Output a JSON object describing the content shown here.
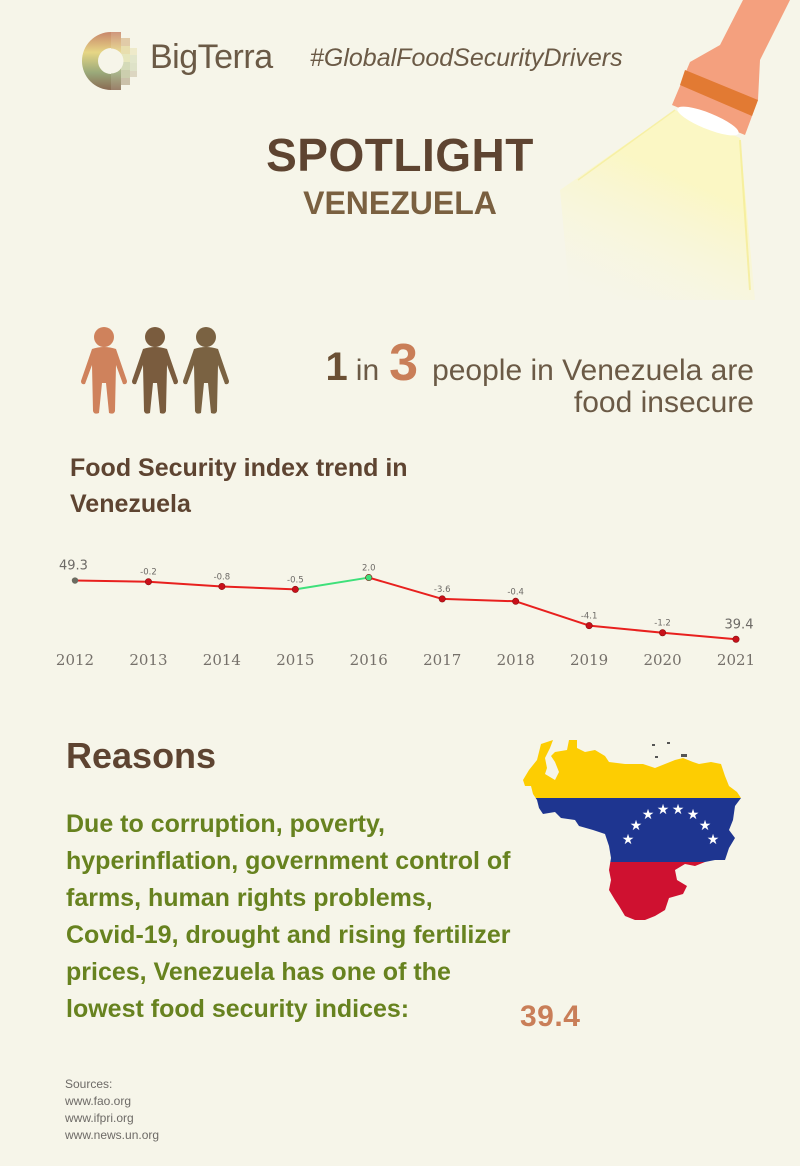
{
  "header": {
    "brand": "BigTerra",
    "hashtag": "#GlobalFoodSecurityDrivers",
    "logo_icon": "bigterra-logo-icon",
    "flashlight_icon": "flashlight-icon"
  },
  "title": "SPOTLIGHT",
  "subtitle": "VENEZUELA",
  "stat": {
    "numerator": "1",
    "connector": "in",
    "denominator": "3",
    "text_line1": "people in Venezuela are",
    "text_line2": "food insecure",
    "icon": "people-icon",
    "colors": {
      "highlight": "#c97e58",
      "base": "#6b5034"
    }
  },
  "chart_section": {
    "title": "Food Security index trend in Venezuela"
  },
  "chart_data": {
    "type": "line",
    "title": "Food Security index trend in Venezuela",
    "xlabel": "",
    "ylabel": "",
    "categories": [
      "2012",
      "2013",
      "2014",
      "2015",
      "2016",
      "2017",
      "2018",
      "2019",
      "2020",
      "2021"
    ],
    "series": [
      {
        "name": "Food Security Index",
        "values": [
          49.3,
          49.1,
          48.3,
          47.8,
          49.8,
          46.2,
          45.8,
          41.7,
          40.5,
          39.4
        ]
      }
    ],
    "point_labels": [
      "49.3",
      "-0.2",
      "-0.8",
      "-0.5",
      "2.0",
      "-3.6",
      "-0.4",
      "-4.1",
      "-1.2",
      "39.4"
    ],
    "grid": false,
    "legend": "none",
    "colors": {
      "decline": "#e8201e",
      "increase": "#3ee07a",
      "start_marker": "#6b6b60",
      "marker": "#c8101a"
    }
  },
  "reasons": {
    "title": "Reasons",
    "body": "Due to corruption, poverty, hyperinflation, government control of farms, human rights problems, Covid-19, drought and rising fertilizer prices, Venezuela has one of the lowest food security indices:",
    "value": "39.4",
    "map_icon": "venezuela-flag-map-icon"
  },
  "sources": {
    "label": "Sources:",
    "items": [
      "www.fao.org",
      "www.ifpri.org",
      "www.news.un.org"
    ]
  }
}
